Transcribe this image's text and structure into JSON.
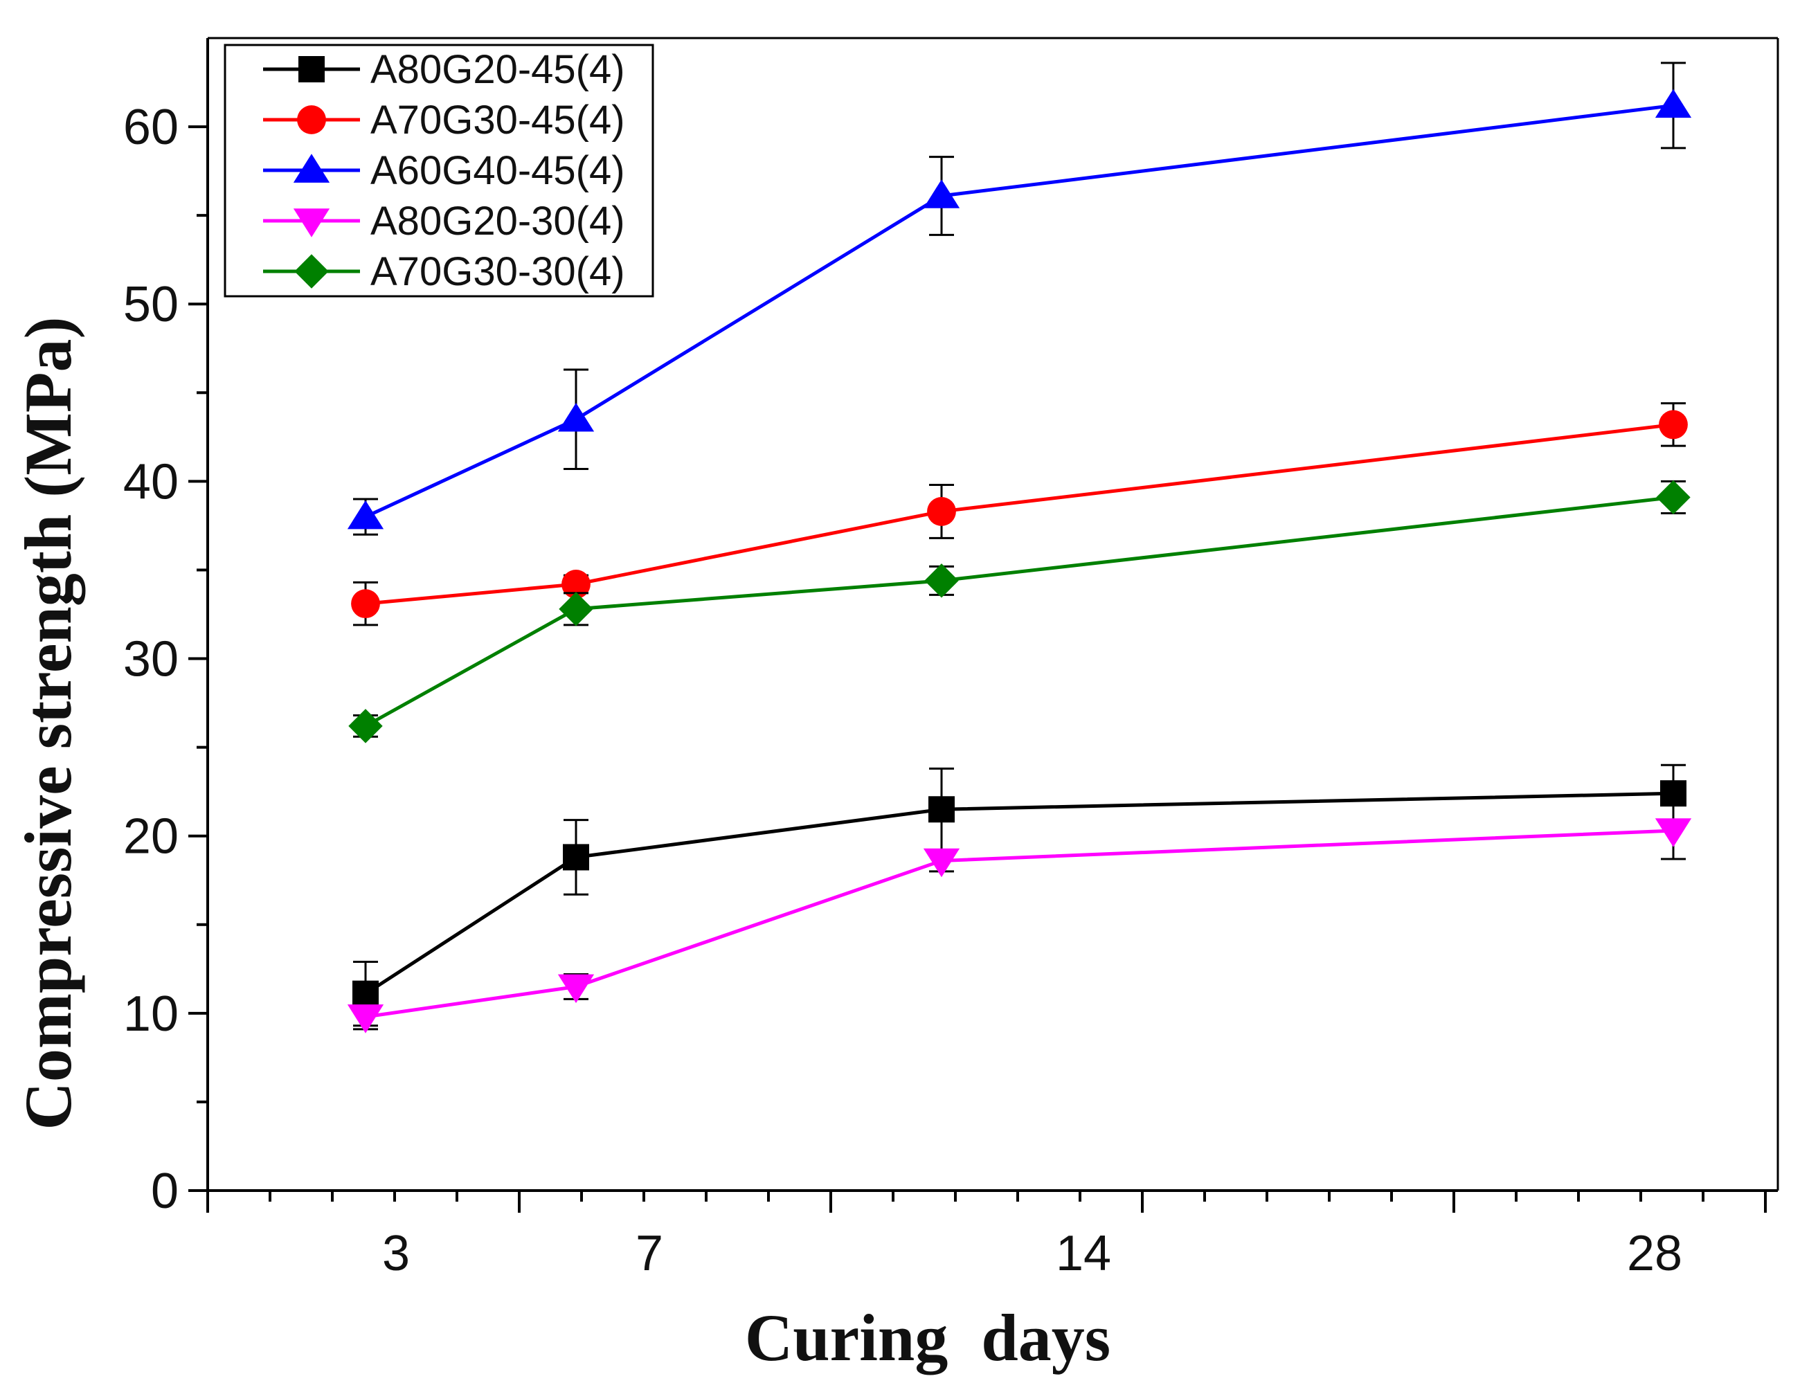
{
  "chart_data": {
    "type": "line",
    "title": "",
    "xlabel": "Curing  days",
    "ylabel": "Compressive strength (MPa)",
    "ylim": [
      0,
      65
    ],
    "yticks": [
      0,
      10,
      20,
      30,
      40,
      50,
      60
    ],
    "xticklabels": [
      "3",
      "7",
      "14",
      "28"
    ],
    "x": [
      3,
      7,
      14,
      28
    ],
    "legend_position": "top-left",
    "series": [
      {
        "name": "A80G20-45(4)",
        "color": "#000000",
        "marker": "square",
        "values": [
          11.1,
          18.8,
          21.5,
          22.4
        ],
        "errors": [
          1.8,
          2.1,
          2.3,
          1.6
        ]
      },
      {
        "name": "A70G30-45(4)",
        "color": "#ff0000",
        "marker": "circle",
        "values": [
          33.1,
          34.2,
          38.3,
          43.2
        ],
        "errors": [
          1.2,
          0.5,
          1.5,
          1.2
        ]
      },
      {
        "name": "A60G40-45(4)",
        "color": "#0000ff",
        "marker": "triangle-up",
        "values": [
          38.0,
          43.5,
          56.1,
          61.2
        ],
        "errors": [
          1.0,
          2.8,
          2.2,
          2.4
        ]
      },
      {
        "name": "A80G20-30(4)",
        "color": "#ff00ff",
        "marker": "triangle-down",
        "values": [
          9.8,
          11.5,
          18.6,
          20.3
        ],
        "errors": [
          0.7,
          0.7,
          0.6,
          1.6
        ]
      },
      {
        "name": "A70G30-30(4)",
        "color": "#008000",
        "marker": "diamond",
        "values": [
          26.2,
          32.8,
          34.4,
          39.1
        ],
        "errors": [
          0.6,
          0.9,
          0.8,
          0.9
        ]
      }
    ]
  }
}
